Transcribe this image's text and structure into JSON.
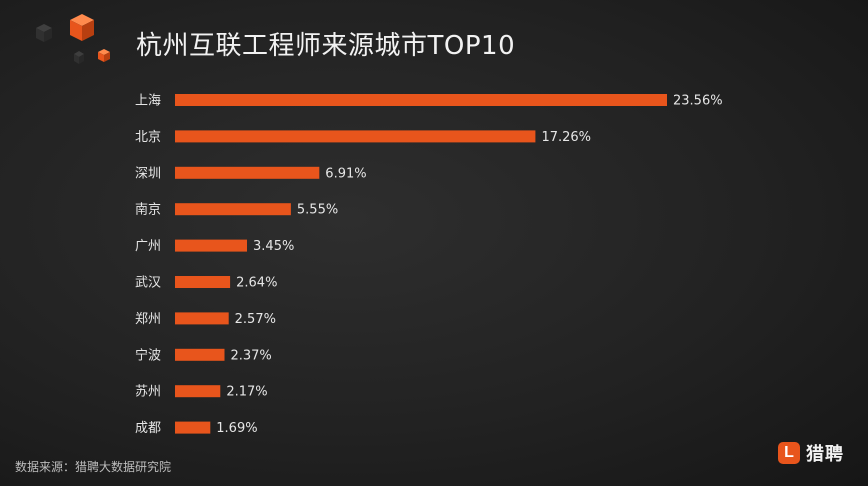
{
  "title": "杭州互联工程师来源城市TOP10",
  "source": "数据来源：猎聘大数据研究院",
  "brand": {
    "logo_letter": "L",
    "name": "猎聘"
  },
  "colors": {
    "bar": "#e8551c",
    "text": "#e6e6e6",
    "accent": "#e8551c"
  },
  "chart_data": {
    "type": "bar",
    "orientation": "horizontal",
    "title": "杭州互联工程师来源城市TOP10",
    "categories": [
      "上海",
      "北京",
      "深圳",
      "南京",
      "广州",
      "武汉",
      "郑州",
      "宁波",
      "苏州",
      "成都"
    ],
    "values": [
      23.56,
      17.26,
      6.91,
      5.55,
      3.45,
      2.64,
      2.57,
      2.37,
      2.17,
      1.69
    ],
    "value_labels": [
      "23.56%",
      "17.26%",
      "6.91%",
      "5.55%",
      "3.45%",
      "2.64%",
      "2.57%",
      "2.37%",
      "2.17%",
      "1.69%"
    ],
    "unit": "%",
    "grid": false,
    "legend": false
  }
}
